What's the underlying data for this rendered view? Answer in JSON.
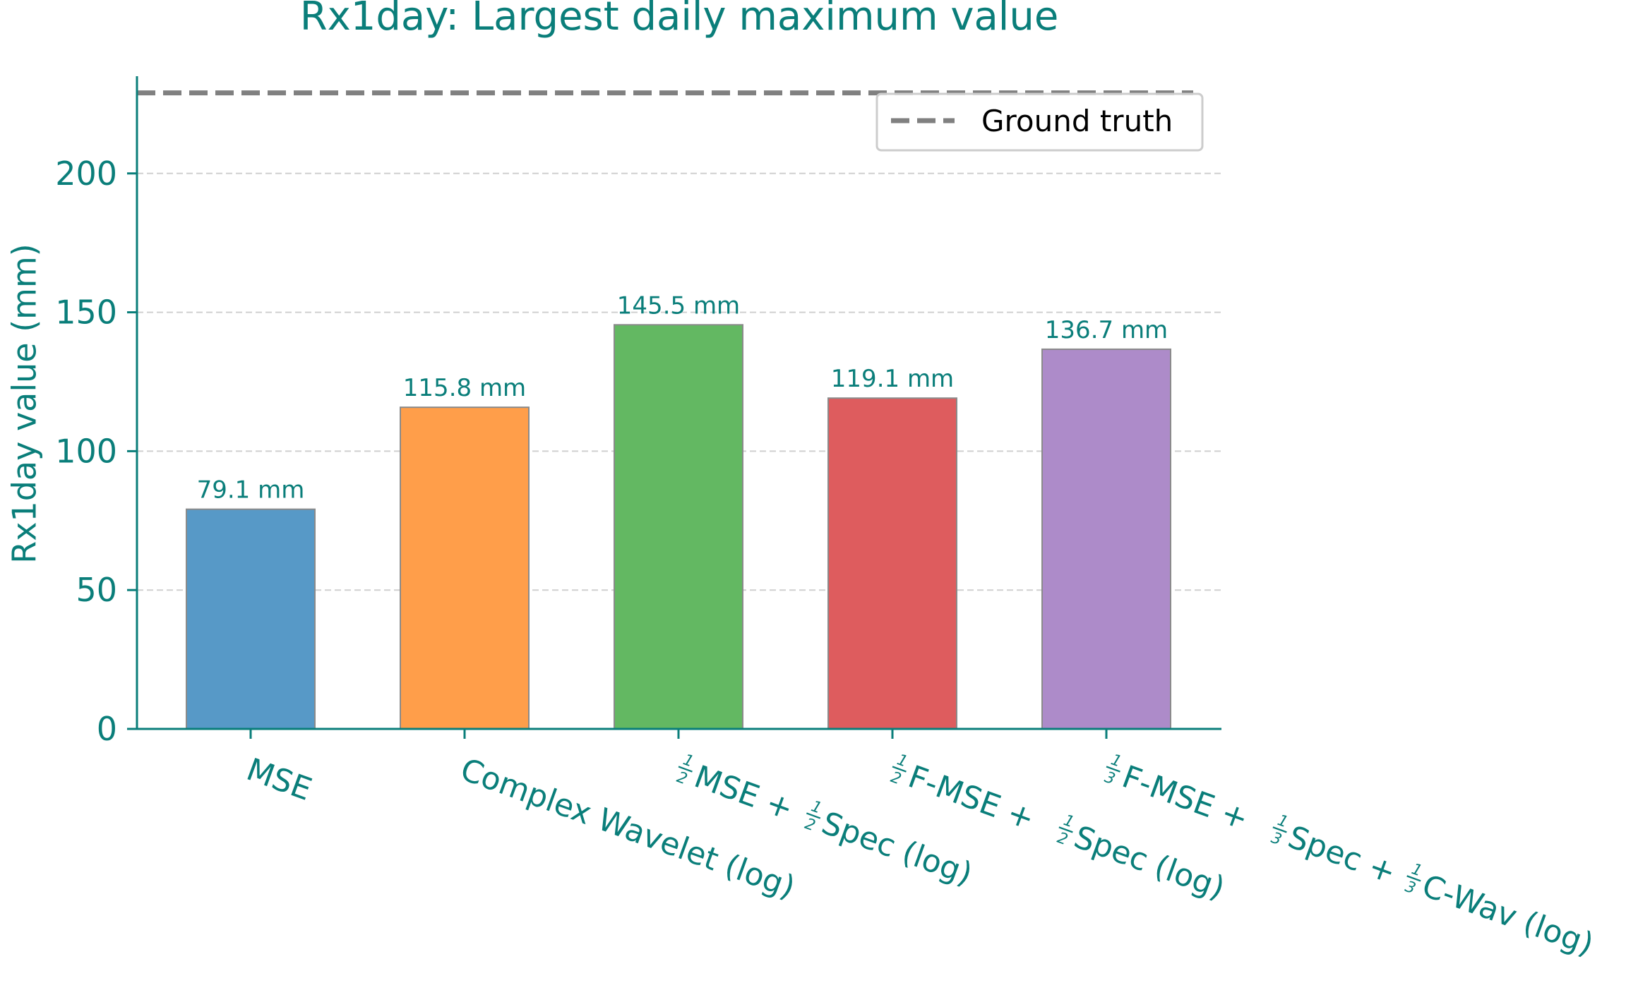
{
  "chart_data": {
    "type": "bar",
    "title": "Rx1day: Largest daily maximum value",
    "xlabel": "",
    "ylabel": "Rx1day value (mm)",
    "ylim": [
      0,
      235
    ],
    "yticks": [
      0,
      50,
      100,
      150,
      200
    ],
    "ytick_labels": [
      "0",
      "50",
      "100",
      "150",
      "200"
    ],
    "grid": "y, dashed",
    "categories": [
      "MSE",
      "Complex Wavelet (log)",
      "½MSE + ½Spec (log)",
      "½F-MSE + ½Spec (log)",
      "⅓F-MSE + ⅓Spec + ⅓C-Wav (log)"
    ],
    "values": [
      79.1,
      115.8,
      145.5,
      119.1,
      136.7
    ],
    "data_labels": [
      "79.1 mm",
      "115.8 mm",
      "145.5 mm",
      "119.1 mm",
      "136.7 mm"
    ],
    "bar_colors": [
      "#5799c7",
      "#ff9e4a",
      "#63b862",
      "#de5c5e",
      "#ad8bc9"
    ],
    "reference_line": {
      "name": "Ground truth",
      "value": 229,
      "color": "#808080",
      "style": "dashed"
    },
    "legend": {
      "placement": "top-right",
      "entries": [
        "Ground truth"
      ]
    },
    "colors": {
      "text": "#0a7e7a",
      "axis": "#0a7e7a",
      "grid": "#d0d0d0",
      "bar_edge": "#8a8a8a"
    }
  }
}
